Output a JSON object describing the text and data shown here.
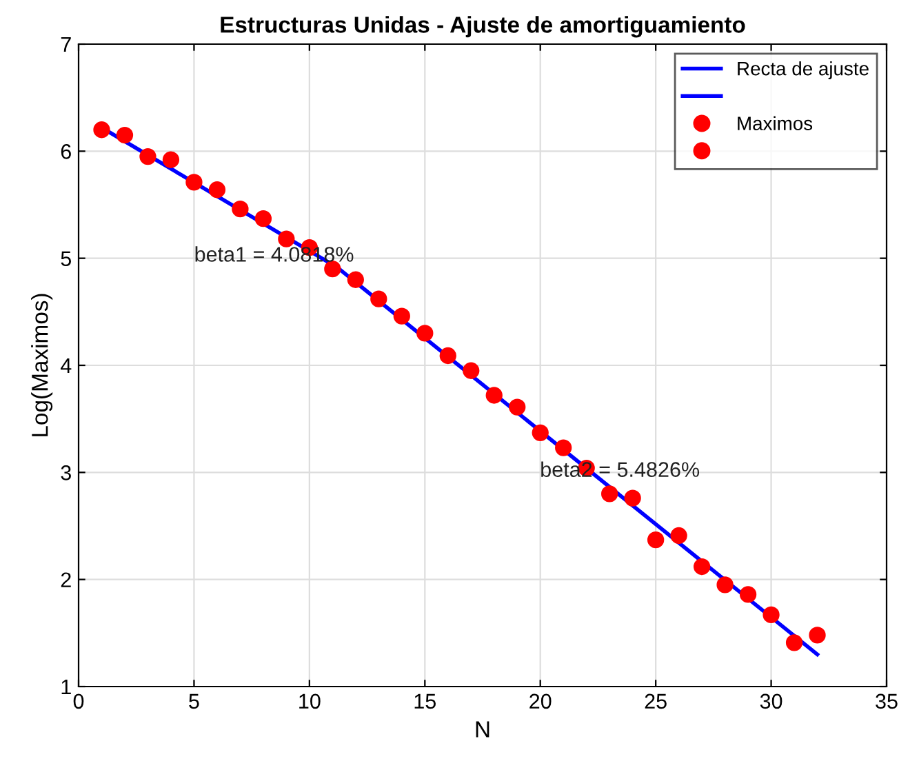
{
  "chart_data": {
    "type": "scatter",
    "title": "Estructuras Unidas - Ajuste de amortiguamiento",
    "xlabel": "N",
    "ylabel": "Log(Maximos)",
    "series": [
      {
        "name": "Recta de ajuste",
        "type": "line",
        "color": "#0000ff",
        "marker": "none",
        "line_style": "solid",
        "x": [
          1,
          11
        ],
        "values": [
          6.22,
          4.94
        ]
      },
      {
        "type": "line",
        "color": "#0000ff",
        "marker": "none",
        "line_style": "solid",
        "x": [
          11,
          32
        ],
        "values": [
          4.95,
          1.3
        ]
      },
      {
        "name": "Maximos",
        "color": "#ff0000",
        "marker": "circle",
        "x": [
          1,
          2,
          3,
          4,
          5,
          6,
          7,
          8,
          9,
          10,
          11,
          12,
          13,
          14,
          15,
          16
        ],
        "values": [
          6.2,
          6.15,
          5.95,
          5.92,
          5.71,
          5.64,
          5.46,
          5.37,
          5.18,
          5.1,
          4.9,
          4.8,
          4.62,
          4.46,
          4.3,
          4.09
        ]
      },
      {
        "color": "#ff0000",
        "marker": "circle",
        "x": [
          17,
          18,
          19,
          20,
          21,
          22,
          23,
          24,
          25,
          26,
          27,
          28,
          29,
          30,
          31,
          32
        ],
        "values": [
          3.95,
          3.72,
          3.61,
          3.37,
          3.23,
          3.04,
          2.8,
          2.76,
          2.37,
          2.41,
          2.12,
          1.95,
          1.86,
          1.67,
          1.41,
          1.48
        ]
      }
    ],
    "annotations": [
      "beta1 = 4.0818%",
      "beta2 = 5.4826%"
    ],
    "xlim": [
      0,
      35
    ],
    "xticks": [
      0,
      5,
      10,
      15,
      20,
      25,
      30,
      35
    ],
    "ylim": [
      1,
      7
    ],
    "yticks": [
      1,
      2,
      3,
      4,
      5,
      6,
      7
    ],
    "grid": true,
    "legend": "top right"
  }
}
